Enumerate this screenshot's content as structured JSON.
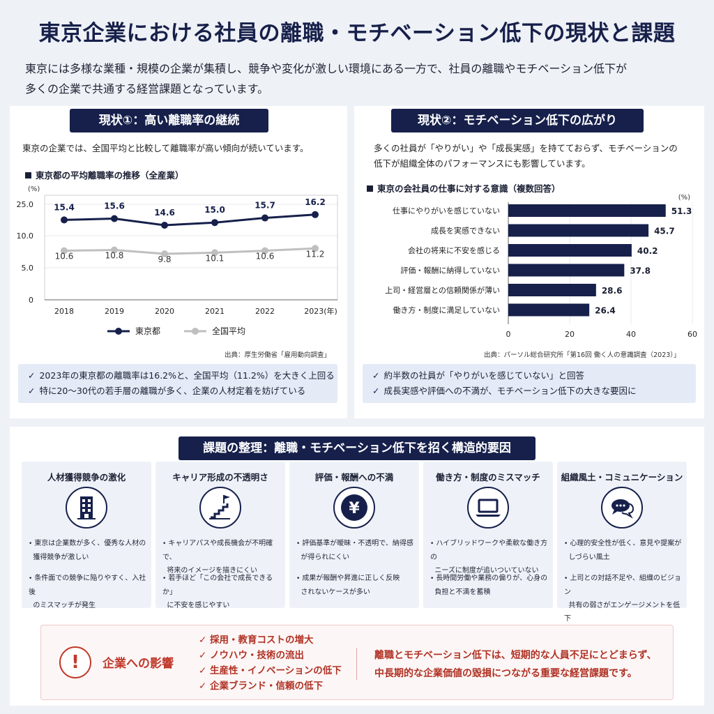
{
  "title": "東京企業における社員の離職・モチベーション低下の現状と課題",
  "intro": {
    "line1": "東京には多様な業種・規模の企業が集積し、競争や変化が激しい環境にある一方で、社員の離職やモチベーション低下が",
    "line2": "多くの企業で共通する経営課題となっています。"
  },
  "left": {
    "heading": "現状①：高い離職率の継続",
    "text": "東京の企業では、全国平均と比較して離職率が高い傾向が続いています。",
    "chart_title": "東京都の平均離職率の推移（全産業）",
    "source": "出典：厚生労働省「雇用動向調査」",
    "checks": [
      "2023年の東京都の離職率は16.2%と、全国平均（11.2%）を大きく上回る",
      "特に20〜30代の若手層の離職が多く、企業の人材定着を妨げている"
    ]
  },
  "right": {
    "heading": "現状②：モチベーション低下の広がり",
    "text1": "多くの社員が「やりがい」や「成長実感」を持てておらず、モチベーションの",
    "text2": "低下が組織全体のパフォーマンスにも影響しています。",
    "chart_title": "東京の会社員の仕事に対する意識（複数回答）",
    "source": "出典：パーソル総合研究所「第16回 働く人の意識調査（2023）」",
    "checks": [
      "約半数の社員が「やりがいを感じていない」と回答",
      "成長実感や評価への不満が、モチベーション低下の大きな要因に"
    ]
  },
  "causes": {
    "heading": "課題の整理：離職・モチベーション低下を招く構造的要因",
    "items": [
      {
        "title": "人材獲得競争の激化",
        "icon": "building-icon",
        "b1a": "東京は企業数が多く、優秀な人材の",
        "b1b": "獲得競争が激しい",
        "b2a": "条件面での競争に陥りやすく、入社後",
        "b2b": "のミスマッチが発生"
      },
      {
        "title": "キャリア形成の不透明さ",
        "icon": "career-stairs-icon",
        "b1a": "キャリアパスや成長機会が不明確で、",
        "b1b": "将来のイメージを描きにくい",
        "b2a": "若手ほど「この会社で成長できるか」",
        "b2b": "に不安を感じやすい"
      },
      {
        "title": "評価・報酬への不満",
        "icon": "yen-icon",
        "b1a": "評価基準が曖昧・不透明で、納得感",
        "b1b": "が得られにくい",
        "b2a": "成果が報酬や昇進に正しく反映",
        "b2b": "されないケースが多い"
      },
      {
        "title": "働き方・制度のミスマッチ",
        "icon": "laptop-icon",
        "b1a": "ハイブリッドワークや柔軟な働き方の",
        "b1b": "ニーズに制度が追いついていない",
        "b2a": "長時間労働や業務の偏りが、心身の",
        "b2b": "負担と不満を蓄積",
        "bullet": "・"
      },
      {
        "title": "組織風土・コミュニケーション",
        "icon": "chat-bubbles-icon",
        "b1a": "心理的安全性が低く、意見や提案が",
        "b1b": "しづらい風土",
        "b2a": "上司との対話不足や、組織のビジョン",
        "b2b": "共有の弱さがエンゲージメントを低下"
      }
    ]
  },
  "impact": {
    "label": "企業への影響",
    "items": [
      "採用・教育コストの増大",
      "ノウハウ・技術の流出",
      "生産性・イノベーションの低下",
      "企業ブランド・信頼の低下"
    ],
    "msg1": "離職とモチベーション低下は、短期的な人員不足にとどまらず、",
    "msg2": "中長期的な企業価値の毀損につながる重要な経営課題です。"
  },
  "colors": {
    "navy": "#16204b",
    "gray_line": "#bfbfbf",
    "accent_red": "#c0392b"
  },
  "chart_data": [
    {
      "type": "line",
      "x": [
        "2018",
        "2019",
        "2020",
        "2021",
        "2022",
        "2023"
      ],
      "x_suffix": "(年)",
      "ylabel": "(%)",
      "yticks": [
        "25.0",
        "10.0",
        "5.0",
        "0"
      ],
      "series": [
        {
          "name": "東京都",
          "values": [
            15.4,
            15.6,
            14.6,
            15.0,
            15.7,
            16.2
          ],
          "labels": [
            "15.4",
            "15.6",
            "14.6",
            "15.0",
            "15.7",
            "16.2"
          ]
        },
        {
          "name": "全国平均",
          "values": [
            10.6,
            10.8,
            9.8,
            10.1,
            10.6,
            11.2
          ],
          "labels": [
            "10.6",
            "10.8",
            "9.8",
            "10.1",
            "10.6",
            "11.2"
          ]
        }
      ],
      "legend": "bottom"
    },
    {
      "type": "bar",
      "orientation": "horizontal",
      "unit": "(%)",
      "categories": [
        "仕事にやりがいを感じていない",
        "成長を実感できない",
        "会社の将来に不安を感じる",
        "評価・報酬に納得していない",
        "上司・経営層との信頼関係が薄い",
        "働き方・制度に満足していない"
      ],
      "values": [
        51.3,
        45.7,
        40.2,
        37.8,
        28.6,
        26.4
      ],
      "labels": [
        "51.3",
        "45.7",
        "40.2",
        "37.8",
        "28.6",
        "26.4"
      ],
      "xlim": [
        0,
        60
      ],
      "xticks": [
        "0",
        "20",
        "40",
        "60"
      ]
    }
  ]
}
